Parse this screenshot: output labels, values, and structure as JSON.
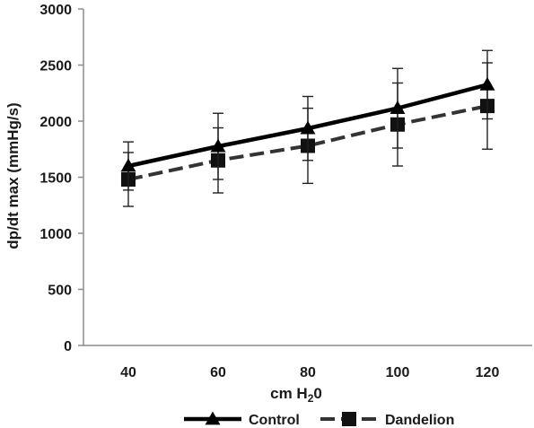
{
  "chart_data": {
    "type": "line",
    "x": [
      40,
      60,
      80,
      100,
      120
    ],
    "xlabel": "cm H",
    "xlabel_subscript": "2",
    "xlabel_suffix": "0",
    "ylabel": "dp/dt max (mmHg/s)",
    "ylim": [
      0,
      3000
    ],
    "yticks": [
      0,
      500,
      1000,
      1500,
      2000,
      2500,
      3000
    ],
    "grid": false,
    "legend_position": "bottom",
    "series": [
      {
        "name": "Control",
        "values": [
          1600,
          1775,
          1935,
          2115,
          2325
        ],
        "error": [
          215,
          295,
          285,
          355,
          305
        ],
        "line_style": "solid",
        "marker": "triangle",
        "color": "#000000"
      },
      {
        "name": "Dandelion",
        "values": [
          1480,
          1650,
          1780,
          1970,
          2135
        ],
        "error": [
          240,
          290,
          335,
          370,
          385
        ],
        "line_style": "dashed",
        "marker": "square",
        "color": "#1a1a1a"
      }
    ]
  }
}
